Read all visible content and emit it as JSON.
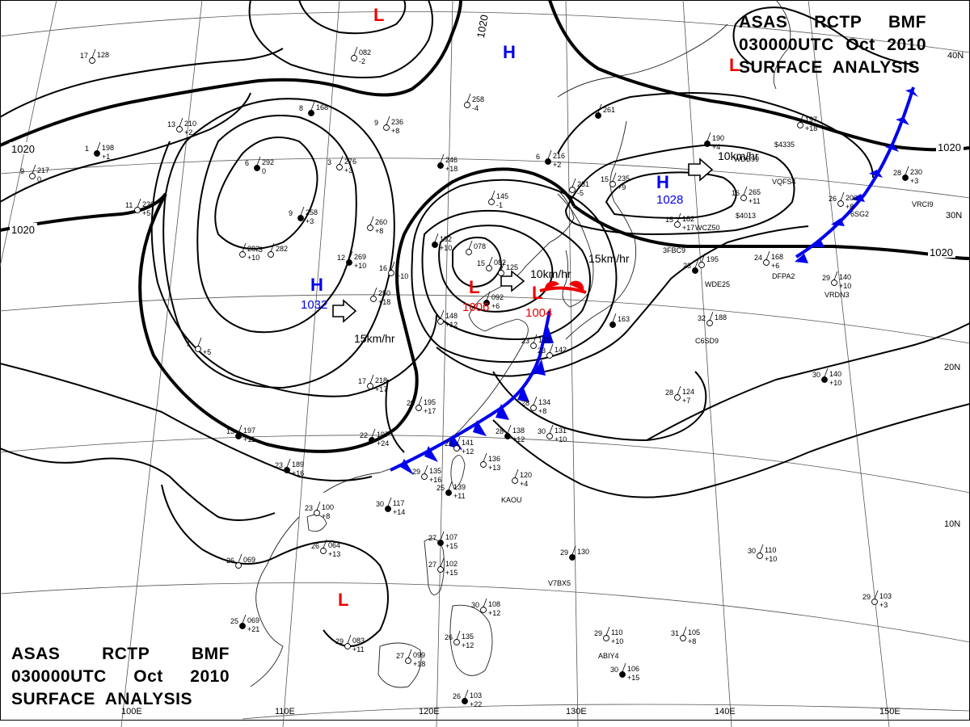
{
  "header": {
    "line1": [
      "ASAS",
      "RCTP",
      "BMF"
    ],
    "line2": [
      "030000UTC",
      "Oct",
      "2010"
    ],
    "line3": "SURFACE  ANALYSIS"
  },
  "graticule": {
    "lon_labels": [
      "110E",
      "120E",
      "130E",
      "140E",
      "150E"
    ],
    "partial_lon_label": "100E",
    "lat_labels": [
      "40N",
      "30N",
      "20N",
      "10N"
    ]
  },
  "isobar_labels": [
    "1020",
    "1020",
    "1020",
    "1020",
    "1020"
  ],
  "pressure_centers": [
    {
      "type": "H",
      "value": "1032",
      "color": "#0000ee"
    },
    {
      "type": "H",
      "value": "1028",
      "color": "#0000ee"
    },
    {
      "type": "H",
      "value": "",
      "color": "#0000ee"
    },
    {
      "type": "L",
      "value": "1006",
      "color": "#ee0000"
    },
    {
      "type": "L",
      "value": "1004",
      "color": "#ee0000"
    },
    {
      "type": "L",
      "value": "",
      "color": "#ee0000"
    },
    {
      "type": "L",
      "value": "",
      "color": "#ee0000"
    },
    {
      "type": "L",
      "value": "",
      "color": "#ee0000"
    }
  ],
  "motion_labels": [
    "15km/hr",
    "10km/hr",
    "15km/hr",
    "10km/hr"
  ],
  "fronts": {
    "cold_color": "#0000ee",
    "warm_color": "#ee0000"
  },
  "ship_ids": [
    "KAOU",
    "V7BX5",
    "ABIY4",
    "C6SD9",
    "WDE25",
    "DFPA2",
    "VRDN3",
    "3FBC9",
    "WDB99",
    "VQFS4",
    "VRCI9",
    "6SG2",
    "WCZ50",
    "$4335",
    "$4013"
  ],
  "station_plots": [
    {
      "t": "23",
      "p": "189",
      "tend": "+16"
    },
    {
      "t": "26",
      "p": "064",
      "tend": "+13"
    },
    {
      "t": "26",
      "p": "069",
      "tend": ""
    },
    {
      "t": "25",
      "p": "069",
      "tend": "+21"
    },
    {
      "t": "29",
      "p": "083",
      "tend": "+11"
    },
    {
      "t": "27",
      "p": "099",
      "tend": "+18"
    },
    {
      "t": "26",
      "p": "103",
      "tend": "+22"
    },
    {
      "t": "26",
      "p": "135",
      "tend": "+12"
    },
    {
      "t": "30",
      "p": "108",
      "tend": "+12"
    },
    {
      "t": "27",
      "p": "107",
      "tend": "+15"
    },
    {
      "t": "27",
      "p": "102",
      "tend": "+15"
    },
    {
      "t": "23",
      "p": "100",
      "tend": "+8"
    },
    {
      "t": "30",
      "p": "117",
      "tend": "+14"
    },
    {
      "t": "29",
      "p": "135",
      "tend": "+16"
    },
    {
      "t": "25",
      "p": "141",
      "tend": "+12"
    },
    {
      "t": "25",
      "p": "139",
      "tend": "+11"
    },
    {
      "t": "",
      "p": "136",
      "tend": "+13"
    },
    {
      "t": "",
      "p": "120",
      "tend": "+4"
    },
    {
      "t": "28",
      "p": "138",
      "tend": "+12"
    },
    {
      "t": "30",
      "p": "131",
      "tend": "+10"
    },
    {
      "t": "28",
      "p": "134",
      "tend": "+8"
    },
    {
      "t": "29",
      "p": "130",
      "tend": ""
    },
    {
      "t": "29",
      "p": "110",
      "tend": "+10"
    },
    {
      "t": "31",
      "p": "105",
      "tend": "+8"
    },
    {
      "t": "30",
      "p": "106",
      "tend": "+15"
    },
    {
      "t": "30",
      "p": "110",
      "tend": "+10"
    },
    {
      "t": "29",
      "p": "103",
      "tend": "+3"
    },
    {
      "t": "30",
      "p": "140",
      "tend": "+10"
    },
    {
      "t": "28",
      "p": "124",
      "tend": "+7"
    },
    {
      "t": "32",
      "p": "188",
      "tend": ""
    },
    {
      "t": "",
      "p": "163",
      "tend": ""
    },
    {
      "t": "23",
      "p": "129",
      "tend": ""
    },
    {
      "t": "23",
      "p": "142",
      "tend": ""
    },
    {
      "t": "22",
      "p": "197",
      "tend": "+24"
    },
    {
      "t": "20",
      "p": "195",
      "tend": "+17"
    },
    {
      "t": "17",
      "p": "218",
      "tend": "+17"
    },
    {
      "t": "13",
      "p": "197",
      "tend": "+11"
    },
    {
      "t": "7",
      "p": "",
      "tend": "+5"
    },
    {
      "t": "",
      "p": "148",
      "tend": "+12"
    },
    {
      "t": "",
      "p": "092",
      "tend": "+6"
    },
    {
      "t": "15",
      "p": "082",
      "tend": ""
    },
    {
      "t": "",
      "p": "078",
      "tend": ""
    },
    {
      "t": "",
      "p": "192",
      "tend": "+10"
    },
    {
      "t": "16",
      "p": "",
      "tend": "+10"
    },
    {
      "t": "",
      "p": "250",
      "tend": "+18"
    },
    {
      "t": "12",
      "p": "269",
      "tend": "+10"
    },
    {
      "t": "",
      "p": "282",
      "tend": "+10"
    },
    {
      "t": "3",
      "p": "282",
      "tend": ""
    },
    {
      "t": "9",
      "p": "258",
      "tend": "+3"
    },
    {
      "t": "",
      "p": "260",
      "tend": "+8"
    },
    {
      "t": "3",
      "p": "276",
      "tend": "+3"
    },
    {
      "t": "6",
      "p": "292",
      "tend": "0"
    },
    {
      "t": "9",
      "p": "236",
      "tend": "+8"
    },
    {
      "t": "9",
      "p": "217",
      "tend": "0"
    },
    {
      "t": "1",
      "p": "198",
      "tend": "+1"
    },
    {
      "t": "13",
      "p": "210",
      "tend": "+2"
    },
    {
      "t": "11",
      "p": "236",
      "tend": "+5"
    },
    {
      "t": "8",
      "p": "168",
      "tend": ""
    },
    {
      "t": "",
      "p": "082",
      "tend": "-2"
    },
    {
      "t": "17",
      "p": "128",
      "tend": ""
    },
    {
      "t": "",
      "p": "246",
      "tend": "+18"
    },
    {
      "t": "",
      "p": "258",
      "tend": "-4"
    },
    {
      "t": "",
      "p": "145",
      "tend": "-1"
    },
    {
      "t": "6",
      "p": "216",
      "tend": "+2"
    },
    {
      "t": "",
      "p": "231",
      "tend": "-5"
    },
    {
      "t": "15",
      "p": "235",
      "tend": "+9"
    },
    {
      "t": "",
      "p": "261",
      "tend": ""
    },
    {
      "t": "15",
      "p": "182",
      "tend": "+17"
    },
    {
      "t": "16",
      "p": "265",
      "tend": "+11"
    },
    {
      "t": "",
      "p": "190",
      "tend": "+4"
    },
    {
      "t": "",
      "p": "197",
      "tend": "+18"
    },
    {
      "t": "26",
      "p": "200",
      "tend": "+8"
    },
    {
      "t": "28",
      "p": "230",
      "tend": "+3"
    },
    {
      "t": "24",
      "p": "168",
      "tend": "+6"
    },
    {
      "t": "29",
      "p": "140",
      "tend": "+10"
    },
    {
      "t": "23",
      "p": "",
      "tend": ""
    },
    {
      "t": "",
      "p": "195",
      "tend": ""
    },
    {
      "t": "",
      "p": "125",
      "tend": ""
    }
  ]
}
